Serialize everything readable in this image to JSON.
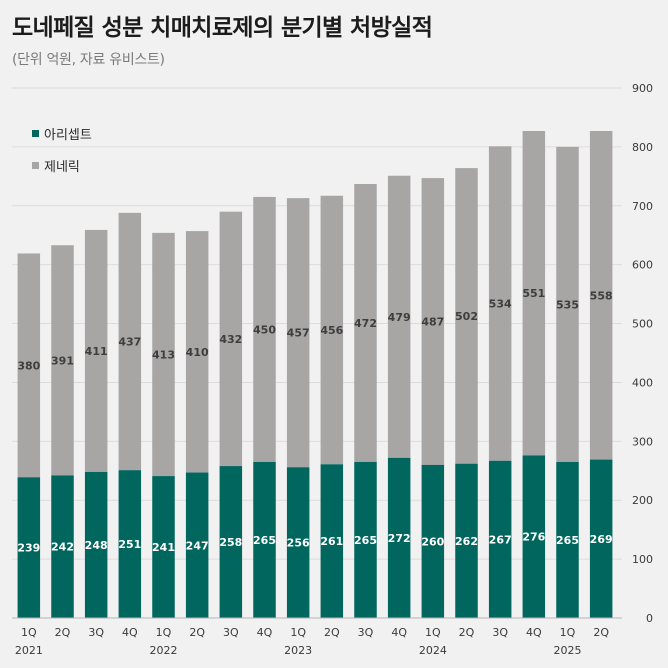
{
  "title": "도네페질 성분 치매치료제의 분기별 처방실적",
  "subtitle": "(단위 억원, 자료 유비스트)",
  "colors": {
    "aricept": "#01665e",
    "generic": "#a8a5a5",
    "grid": "#dcdcdc",
    "axis_text": "#3a3a3a",
    "background": "#f2f1f1"
  },
  "chart_data": {
    "type": "bar",
    "stacked": true,
    "title": "도네페질 성분 치매치료제의 분기별 처방실적",
    "subtitle": "(단위 억원, 자료 유비스트)",
    "categories": [
      "1Q",
      "2Q",
      "3Q",
      "4Q",
      "1Q",
      "2Q",
      "3Q",
      "4Q",
      "1Q",
      "2Q",
      "3Q",
      "4Q",
      "1Q",
      "2Q",
      "3Q",
      "4Q",
      "1Q",
      "2Q"
    ],
    "years": [
      {
        "label": "2021",
        "start_index": 0
      },
      {
        "label": "2022",
        "start_index": 4
      },
      {
        "label": "2023",
        "start_index": 8
      },
      {
        "label": "2024",
        "start_index": 12
      },
      {
        "label": "2025",
        "start_index": 16
      }
    ],
    "series": [
      {
        "name": "아리셉트",
        "values": [
          239,
          242,
          248,
          251,
          241,
          247,
          258,
          265,
          256,
          261,
          265,
          272,
          260,
          262,
          267,
          276,
          265,
          269
        ]
      },
      {
        "name": "제네릭",
        "values": [
          380,
          391,
          411,
          437,
          413,
          410,
          432,
          450,
          457,
          456,
          472,
          479,
          487,
          502,
          534,
          551,
          535,
          558
        ]
      }
    ],
    "ylim": [
      0,
      900
    ],
    "yticks": [
      0,
      100,
      200,
      300,
      400,
      500,
      600,
      700,
      800,
      900
    ],
    "y_axis_side": "right",
    "legend_position": "top-left",
    "grid": true
  }
}
